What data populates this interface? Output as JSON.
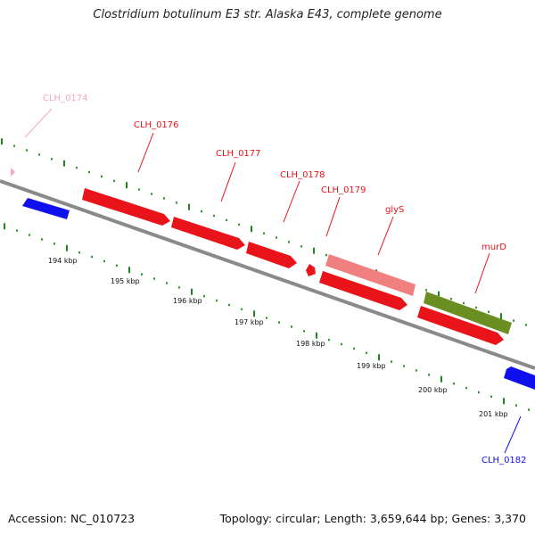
{
  "title": "Clostridium botulinum E3 str. Alaska E43, complete genome",
  "footer": {
    "accession": "Accession: NC_010723",
    "stats": "Topology: circular; Length: 3,659,644 bp; Genes: 3,370"
  },
  "colors": {
    "backbone": "#8a8a8a",
    "tick": "#1b8a1b",
    "cds_red": "#e8141a",
    "cds_pink": "#f08080",
    "cds_olive": "#6b8e23",
    "cds_blue": "#1010ee",
    "light_pink": "#f4a6c8"
  },
  "scale_labels": [
    "194 kbp",
    "195 kbp",
    "196 kbp",
    "197 kbp",
    "198 kbp",
    "199 kbp",
    "200 kbp",
    "201 kbp"
  ],
  "gene_labels": [
    {
      "name": "CLH_0174",
      "color": "light_pink"
    },
    {
      "name": "CLH_0176",
      "color": "cds_red"
    },
    {
      "name": "CLH_0177",
      "color": "cds_red"
    },
    {
      "name": "CLH_0178",
      "color": "cds_red"
    },
    {
      "name": "CLH_0179",
      "color": "cds_red"
    },
    {
      "name": "glyS",
      "color": "cds_red"
    },
    {
      "name": "murD",
      "color": "cds_red"
    },
    {
      "name": "CLH_0182",
      "color": "cds_blue"
    }
  ]
}
